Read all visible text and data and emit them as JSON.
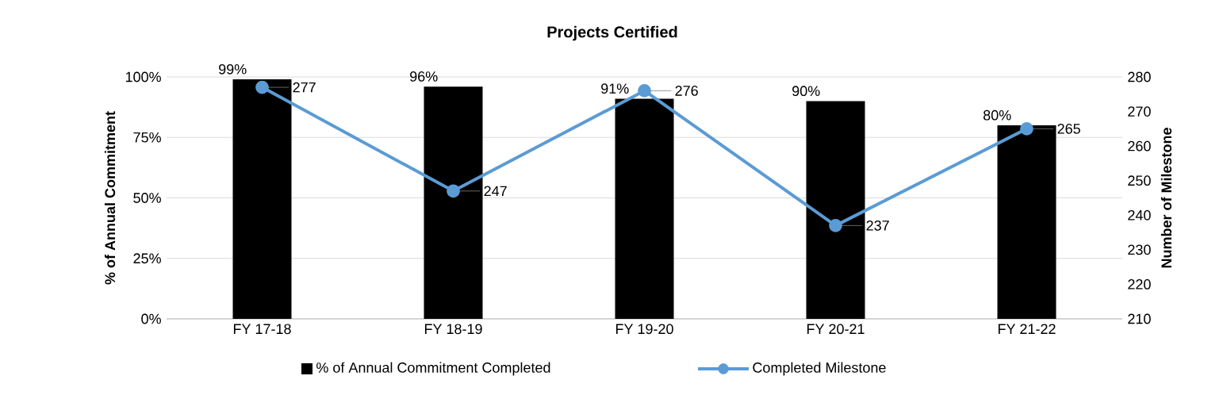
{
  "chart_data": {
    "type": "bar",
    "title": "Projects Certified",
    "ylabel": "% of Annual Commitment",
    "y2label": "Number of Milestone",
    "categories": [
      "FY 17-18",
      "FY 18-19",
      "FY 19-20",
      "FY 20-21",
      "FY 21-22"
    ],
    "series": [
      {
        "name": "% of Annual Commitment Completed",
        "color": "#000000",
        "values": [
          99,
          96,
          91,
          90,
          80
        ],
        "value_labels": [
          "99%",
          "96%",
          "91%",
          "90%",
          "80%"
        ]
      },
      {
        "name": "Completed Milestone",
        "type": "line",
        "axis": "y2",
        "color": "#5b9bd5",
        "marker": "circle",
        "line_style": "solid",
        "values": [
          277,
          247,
          276,
          237,
          265
        ],
        "value_labels": [
          "277",
          "247",
          "276",
          "237",
          "265"
        ]
      }
    ],
    "ylim": [
      0,
      100
    ],
    "yticks": [
      {
        "value": 0,
        "label": "0%"
      },
      {
        "value": 25,
        "label": "25%"
      },
      {
        "value": 50,
        "label": "50%"
      },
      {
        "value": 75,
        "label": "75%"
      },
      {
        "value": 100,
        "label": "100%"
      }
    ],
    "y2lim": [
      210,
      280
    ],
    "y2ticks": [
      210,
      220,
      230,
      240,
      250,
      260,
      270,
      280
    ],
    "grid": "y",
    "legend": "bottom"
  }
}
